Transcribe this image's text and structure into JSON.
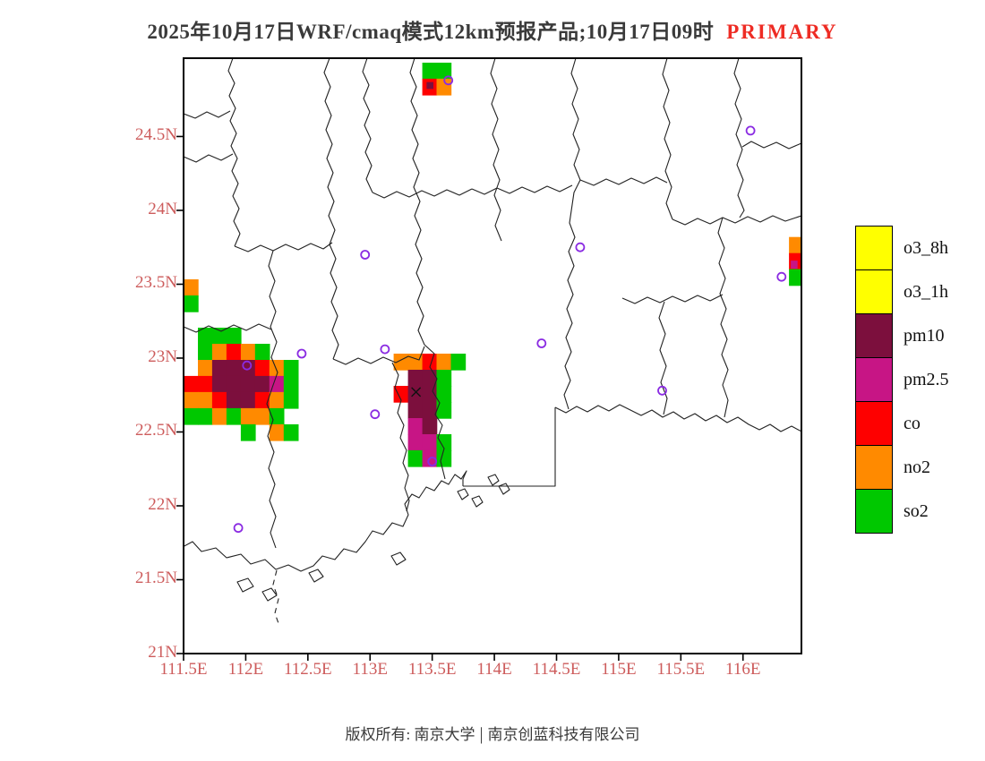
{
  "title": {
    "main": "2025年10月17日WRF/cmaq模式12km预报产品;10月17日09时",
    "highlight": "PRIMARY"
  },
  "footer": {
    "copyright_left": "版权所有: 南京大学",
    "separator": "|",
    "copyright_right": "南京创蓝科技有限公司"
  },
  "colors": {
    "axis_label": "#cd5c5c",
    "title_text": "#3a3a3a",
    "highlight": "#ee2c24",
    "boundary": "#222222",
    "station": "#8a2be2",
    "palette": {
      "G": "#00c800",
      "O": "#ff8a00",
      "R": "#fe0000",
      "M": "#c71585",
      "P": "#7c0f3d",
      "Y": "#ffff00"
    },
    "palette_names": {
      "G": "so2",
      "O": "no2",
      "R": "co",
      "M": "pm2_5",
      "P": "pm10",
      "Y": "o3"
    }
  },
  "legend": {
    "items": [
      {
        "label": "o3_8h",
        "color": "Y"
      },
      {
        "label": "o3_1h",
        "color": "Y"
      },
      {
        "label": "pm10",
        "color": "P"
      },
      {
        "label": "pm2.5",
        "color": "M"
      },
      {
        "label": "co",
        "color": "R"
      },
      {
        "label": "no2",
        "color": "O"
      },
      {
        "label": "so2",
        "color": "G"
      }
    ]
  },
  "map": {
    "extent": {
      "lon_min": 111.5,
      "lon_max": 116.47,
      "lat_min": 21.0,
      "lat_max": 25.03
    },
    "x_ticks": [
      {
        "value": 111.5,
        "label": "111.5E"
      },
      {
        "value": 112,
        "label": "112E"
      },
      {
        "value": 112.5,
        "label": "112.5E"
      },
      {
        "value": 113,
        "label": "113E"
      },
      {
        "value": 113.5,
        "label": "113.5E"
      },
      {
        "value": 114,
        "label": "114E"
      },
      {
        "value": 114.5,
        "label": "114.5E"
      },
      {
        "value": 115,
        "label": "115E"
      },
      {
        "value": 115.5,
        "label": "115.5E"
      },
      {
        "value": 116,
        "label": "116E"
      }
    ],
    "y_ticks": [
      {
        "value": 21,
        "label": "21N"
      },
      {
        "value": 21.5,
        "label": "21.5N"
      },
      {
        "value": 22,
        "label": "22N"
      },
      {
        "value": 22.5,
        "label": "22.5N"
      },
      {
        "value": 23,
        "label": "23N"
      },
      {
        "value": 23.5,
        "label": "23.5N"
      },
      {
        "value": 24,
        "label": "24N"
      },
      {
        "value": 24.5,
        "label": "24.5N"
      }
    ],
    "stations": [
      [
        116.06,
        24.54
      ],
      [
        112.96,
        23.7
      ],
      [
        114.69,
        23.75
      ],
      [
        116.31,
        23.55
      ],
      [
        112.45,
        23.03
      ],
      [
        113.12,
        23.06
      ],
      [
        114.38,
        23.1
      ],
      [
        112.01,
        22.95
      ],
      [
        115.35,
        22.78
      ],
      [
        113.04,
        22.62
      ],
      [
        113.5,
        22.3
      ],
      [
        111.94,
        21.85
      ],
      [
        113.63,
        24.88
      ]
    ],
    "city_marker": [
      113.37,
      22.77
    ],
    "patches": [
      {
        "lon0": 113.42,
        "lat0": 25.0,
        "dlon": 0.115,
        "dlat": 0.109,
        "rows": [
          "GG",
          "RO"
        ]
      },
      {
        "lon0": 111.5,
        "lat0": 23.533,
        "dlon": 0.115,
        "dlat": 0.109,
        "rows": [
          "O.......",
          "G.......",
          "........",
          ".GGG....",
          ".GOROG..",
          ".OPPPROG",
          "RRPPPPMG",
          "OORPPROG",
          "GGOGOOG.",
          "....G.OG"
        ]
      },
      {
        "lon0": 113.19,
        "lat0": 23.03,
        "dlon": 0.115,
        "dlat": 0.109,
        "rows": [
          "OOROG",
          ".PPG.",
          "RPPG.",
          ".PPG.",
          ".MP..",
          ".MMG.",
          ".GMG."
        ]
      },
      {
        "lon0": 116.37,
        "lat0": 23.82,
        "dlon": 0.101,
        "dlat": 0.109,
        "rows": [
          "O",
          "R",
          "G"
        ]
      },
      {
        "lon0": 113.455,
        "lat0": 24.868,
        "dlon": 0.05,
        "dlat": 0.042,
        "rows": [
          "P"
        ]
      },
      {
        "lon0": 116.384,
        "lat0": 23.66,
        "dlon": 0.05,
        "dlat": 0.05,
        "rows": [
          "M"
        ]
      }
    ],
    "boundaries": [
      "M -3,547 L 10,540 L 20,551 L 36,547 L 48,558 L 64,554 L 75,565 L 91,560 L 103,571 L 117,566 L 131,573 L 145,567 L 155,556 L 169,560 L 179,548 L 193,552 L 203,540 L 211,528 L 223,532 L 233,519 L 245,523 L 251,510 L 247,498 L 255,487 L 263,491 L 271,479 L 280,483 L 288,472 L 296,476 L 303,465 L 310,470 L 316,461 L 312,470 L 312,478",
      "M 312,478 L 415,478 L 415,390",
      "M 415,390 L 427,396 L 439,389 L 451,395 L 463,388 L 475,394 L 487,387 L 499,393 L 511,399 L 523,393 L 535,401 L 547,395 L 559,403 L 571,397 L 583,405 L 595,399 L 607,407 L 619,401 L 631,409 L 643,415 L 655,409 L 667,417 L 679,411 L 692,418",
      "M 55,0 L 50,14 L 57,28 L 51,42 L 58,56 L 52,70 L 59,84 L 53,98 L 60,112 L 54,126 L 61,140 L 55,154 L 62,168 L 56,182 L 63,196 L 57,210",
      "M 0,110 L 14,116 L 28,108 L 42,114 L 55,107",
      "M 0,62 L 13,67 L 26,60 L 39,66 L 52,59",
      "M 163,0 L 157,16 L 164,32 L 158,48 L 165,64 L 159,80 L 166,96 L 160,112 L 167,128 L 161,144 L 168,160 L 162,176 L 169,192 L 163,208 L 170,224 L 164,240 L 171,256 L 165,272 L 172,288 L 166,304 L 173,320 L 167,336",
      "M 57,210 L 72,216 L 86,209 L 100,215 L 114,208 L 128,214 L 142,207 L 156,213 L 166,206",
      "M 205,0 L 200,15 L 207,30 L 201,45 L 208,60 L 202,75 L 209,90 L 203,105 L 210,120 L 204,135 L 211,150",
      "M 211,150 L 224,156 L 238,149 L 252,155 L 266,148 L 280,154 L 294,147 L 308,153 L 322,146",
      "M 258,0 L 253,16 L 260,32 L 254,48 L 261,64 L 255,80 L 262,96 L 256,112 L 263,128 L 257,144 L 264,160 L 258,176 L 265,192 L 259,208 L 266,224 L 260,240 L 267,256 L 261,272 L 268,288 L 262,304 L 269,320",
      "M 322,146 L 336,152 L 350,145 L 364,151 L 378,144 L 392,150 L 406,143 L 420,149 L 434,142",
      "M 348,0 L 343,17 L 350,34 L 344,51 L 351,68 L 345,85 L 352,102 L 346,119 L 353,136 L 347,153 L 354,170 L 348,187 L 355,204",
      "M 438,0 L 433,17 L 440,34 L 434,51 L 441,68 L 435,85 L 442,102 L 436,119 L 443,136",
      "M 443,136 L 458,142 L 472,135 L 486,141 L 500,134 L 514,140 L 528,133 L 540,139",
      "M 540,0 L 535,18 L 542,36 L 536,54 L 543,72 L 537,90 L 544,108 L 538,126 L 545,144 L 539,162 L 546,180",
      "M 620,0 L 615,17 L 622,34 L 616,51 L 623,68 L 617,85 L 624,102 L 618,119 L 625,136 L 619,153 L 626,170 L 621,178",
      "M 690,95 L 676,101 L 662,94 L 648,100 L 634,93 L 624,99",
      "M 546,180 L 560,186 L 574,179 L 588,185 L 602,178 L 616,184 L 630,177 L 644,183 L 658,176 L 672,182 L 690,176",
      "M 602,178 L 597,195 L 604,212 L 598,229 L 605,246 L 599,263 L 606,280 L 600,297 L 607,314 L 601,331 L 608,348 L 602,365 L 608,382 L 604,401",
      "M 490,268 L 504,274 L 518,267 L 532,273 L 546,266 L 560,272 L 574,265 L 588,271 L 602,264",
      "M 537,272 L 531,290 L 538,308 L 532,326 L 539,344 L 533,362 L 540,380 L 536,398",
      "M 100,215 L 95,232 L 102,249 L 96,266 L 103,283 L 97,300 L 104,317 L 98,334 L 105,351 L 99,368",
      "M 99,368 L 93,386 L 100,404 L 94,422 L 101,440 L 95,458 L 102,476 L 96,494 L 103,512 L 97,530 L 103,547",
      "M 0,300 L 14,306 L 28,299 L 42,305 L 56,298 L 70,304 L 84,297 L 98,303",
      "M 167,336 L 181,342 L 195,335 L 209,341 L 223,334 L 237,340 L 251,333 L 263,337 L 269,322",
      "M 269,320 L 280,330 L 275,345 L 283,358 L 278,372 L 286,385 L 281,398 L 289,410 L 284,424 L 291,436 L 287,450 L 292,470",
      "M 233,340 L 240,354 L 236,368 L 243,382 L 239,396 L 246,410 L 242,424 L 249,438 L 245,452 L 251,466 L 247,480 L 252,494 L 249,506",
      "M 430,392 L 425,376 L 432,360 L 426,344 L 433,328 L 427,312 L 434,296 L 428,280 L 435,264 L 429,248 L 436,232 L 430,216 L 437,200 L 431,184 L 436,150 L 443,136"
    ],
    "islands": [
      "M 306,484 L 314,481 L 318,488 L 311,493 Z",
      "M 322,492 L 330,489 L 334,496 L 327,501 Z",
      "M 340,468 L 348,465 L 352,472 L 345,477 Z",
      "M 352,478 L 360,475 L 364,482 L 357,487 Z",
      "M 60,585 L 72,581 L 78,590 L 66,596 Z",
      "M 88,596 L 98,592 L 104,600 L 94,606 Z",
      "M 140,575 L 150,571 L 156,579 L 146,585 Z",
      "M 232,556 L 242,552 L 248,560 L 238,566 Z"
    ],
    "dashed_boundaries": [
      "M 104,572 L 100,588 L 106,604 L 102,620 L 107,634"
    ]
  }
}
